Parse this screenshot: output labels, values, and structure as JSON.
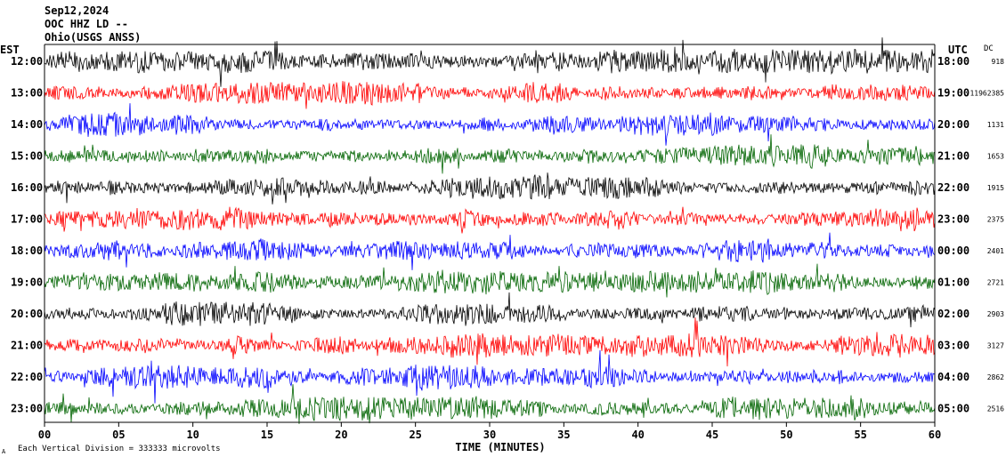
{
  "header": {
    "date": "Sep12,2024",
    "channel": "OOC HHZ LD --",
    "station_line": "Ohio(USGS ANSS)"
  },
  "chart_data": {
    "type": "line",
    "title": "",
    "xlabel": "TIME (MINUTES)",
    "left_timezone": "EST",
    "right_timezone": "UTC",
    "dc_header": "DC",
    "xlim": [
      0,
      60
    ],
    "x_ticks": [
      "00",
      "05",
      "10",
      "15",
      "20",
      "25",
      "30",
      "35",
      "40",
      "45",
      "50",
      "55",
      "60"
    ],
    "scale_note": "Each Vertical Division = 333333 microvolts",
    "corner_mark": "A",
    "trace_colors": [
      "#000000",
      "#ff0000",
      "#0000ff",
      "#006400"
    ],
    "rows": [
      {
        "est": "12:00",
        "utc": "18:00",
        "dc": "918"
      },
      {
        "est": "13:00",
        "utc": "19:00",
        "dc": "-11962385"
      },
      {
        "est": "14:00",
        "utc": "20:00",
        "dc": "1131"
      },
      {
        "est": "15:00",
        "utc": "21:00",
        "dc": "1653"
      },
      {
        "est": "16:00",
        "utc": "22:00",
        "dc": "1915"
      },
      {
        "est": "17:00",
        "utc": "23:00",
        "dc": "2375"
      },
      {
        "est": "18:00",
        "utc": "00:00",
        "dc": "2401"
      },
      {
        "est": "19:00",
        "utc": "01:00",
        "dc": "2721"
      },
      {
        "est": "20:00",
        "utc": "02:00",
        "dc": "2903"
      },
      {
        "est": "21:00",
        "utc": "03:00",
        "dc": "3127"
      },
      {
        "est": "22:00",
        "utc": "04:00",
        "dc": "2862"
      },
      {
        "est": "23:00",
        "utc": "05:00",
        "dc": "2516"
      }
    ]
  }
}
